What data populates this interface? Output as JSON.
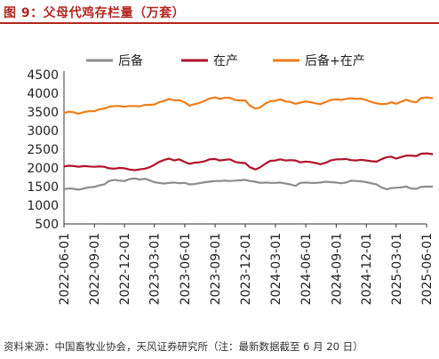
{
  "header": {
    "title": "图 9：父母代鸡存栏量（万套）"
  },
  "footer": {
    "source": "资料来源：中国畜牧业协会，天风证券研究所（注：最新数据截至 6 月 20 日）"
  },
  "chart_data": {
    "type": "line",
    "title": "图 9：父母代鸡存栏量（万套）",
    "xlabel": "",
    "ylabel": "",
    "ylim": [
      500,
      4500
    ],
    "yticks": [
      500,
      1000,
      1500,
      2000,
      2500,
      3000,
      3500,
      4000,
      4500
    ],
    "xticks": [
      "2022-06-01",
      "2022-09-01",
      "2022-12-01",
      "2023-03-01",
      "2023-06-01",
      "2023-09-01",
      "2023-12-01",
      "2024-03-01",
      "2024-06-01",
      "2024-09-01",
      "2024-12-01",
      "2025-03-01",
      "2025-06-01"
    ],
    "grid": false,
    "legend_position": "top",
    "series": [
      {
        "name": "后备",
        "color": "#8c8c8c",
        "points": [
          [
            "2022-06-01",
            1430
          ],
          [
            "2022-06-15",
            1450
          ],
          [
            "2022-07-01",
            1440
          ],
          [
            "2022-07-15",
            1420
          ],
          [
            "2022-08-01",
            1450
          ],
          [
            "2022-08-15",
            1480
          ],
          [
            "2022-09-01",
            1490
          ],
          [
            "2022-09-15",
            1530
          ],
          [
            "2022-10-01",
            1560
          ],
          [
            "2022-10-15",
            1650
          ],
          [
            "2022-11-01",
            1680
          ],
          [
            "2022-11-15",
            1660
          ],
          [
            "2022-12-01",
            1650
          ],
          [
            "2022-12-15",
            1700
          ],
          [
            "2023-01-01",
            1720
          ],
          [
            "2023-01-15",
            1690
          ],
          [
            "2023-02-01",
            1710
          ],
          [
            "2023-02-15",
            1670
          ],
          [
            "2023-03-01",
            1620
          ],
          [
            "2023-03-15",
            1600
          ],
          [
            "2023-04-01",
            1580
          ],
          [
            "2023-04-15",
            1600
          ],
          [
            "2023-05-01",
            1610
          ],
          [
            "2023-05-15",
            1590
          ],
          [
            "2023-06-01",
            1600
          ],
          [
            "2023-06-15",
            1560
          ],
          [
            "2023-07-01",
            1570
          ],
          [
            "2023-07-15",
            1590
          ],
          [
            "2023-08-01",
            1620
          ],
          [
            "2023-08-15",
            1630
          ],
          [
            "2023-09-01",
            1650
          ],
          [
            "2023-09-15",
            1650
          ],
          [
            "2023-10-01",
            1660
          ],
          [
            "2023-10-15",
            1650
          ],
          [
            "2023-11-01",
            1660
          ],
          [
            "2023-11-15",
            1670
          ],
          [
            "2023-12-01",
            1680
          ],
          [
            "2023-12-15",
            1650
          ],
          [
            "2024-01-01",
            1630
          ],
          [
            "2024-01-15",
            1600
          ],
          [
            "2024-02-01",
            1610
          ],
          [
            "2024-02-15",
            1600
          ],
          [
            "2024-03-01",
            1600
          ],
          [
            "2024-03-15",
            1610
          ],
          [
            "2024-04-01",
            1580
          ],
          [
            "2024-04-15",
            1560
          ],
          [
            "2024-05-01",
            1520
          ],
          [
            "2024-05-15",
            1600
          ],
          [
            "2024-06-01",
            1610
          ],
          [
            "2024-06-15",
            1600
          ],
          [
            "2024-07-01",
            1600
          ],
          [
            "2024-07-15",
            1610
          ],
          [
            "2024-08-01",
            1630
          ],
          [
            "2024-08-15",
            1620
          ],
          [
            "2024-09-01",
            1610
          ],
          [
            "2024-09-15",
            1590
          ],
          [
            "2024-10-01",
            1610
          ],
          [
            "2024-10-15",
            1660
          ],
          [
            "2024-11-01",
            1650
          ],
          [
            "2024-11-15",
            1640
          ],
          [
            "2024-12-01",
            1620
          ],
          [
            "2024-12-15",
            1590
          ],
          [
            "2025-01-01",
            1560
          ],
          [
            "2025-01-15",
            1480
          ],
          [
            "2025-02-01",
            1430
          ],
          [
            "2025-02-15",
            1460
          ],
          [
            "2025-03-01",
            1470
          ],
          [
            "2025-03-15",
            1480
          ],
          [
            "2025-04-01",
            1500
          ],
          [
            "2025-04-15",
            1450
          ],
          [
            "2025-05-01",
            1440
          ],
          [
            "2025-05-15",
            1490
          ],
          [
            "2025-06-01",
            1500
          ],
          [
            "2025-06-20",
            1500
          ]
        ]
      },
      {
        "name": "在产",
        "color": "#b0122b",
        "points": [
          [
            "2022-06-01",
            2040
          ],
          [
            "2022-06-15",
            2060
          ],
          [
            "2022-07-01",
            2050
          ],
          [
            "2022-07-15",
            2030
          ],
          [
            "2022-08-01",
            2050
          ],
          [
            "2022-08-15",
            2040
          ],
          [
            "2022-09-01",
            2030
          ],
          [
            "2022-09-15",
            2040
          ],
          [
            "2022-10-01",
            2030
          ],
          [
            "2022-10-15",
            1990
          ],
          [
            "2022-11-01",
            1980
          ],
          [
            "2022-11-15",
            2000
          ],
          [
            "2022-12-01",
            1990
          ],
          [
            "2022-12-15",
            1960
          ],
          [
            "2023-01-01",
            1940
          ],
          [
            "2023-01-15",
            1960
          ],
          [
            "2023-02-01",
            1980
          ],
          [
            "2023-02-15",
            2020
          ],
          [
            "2023-03-01",
            2080
          ],
          [
            "2023-03-15",
            2160
          ],
          [
            "2023-04-01",
            2220
          ],
          [
            "2023-04-15",
            2250
          ],
          [
            "2023-05-01",
            2200
          ],
          [
            "2023-05-15",
            2230
          ],
          [
            "2023-06-01",
            2160
          ],
          [
            "2023-06-15",
            2110
          ],
          [
            "2023-07-01",
            2140
          ],
          [
            "2023-07-15",
            2150
          ],
          [
            "2023-08-01",
            2180
          ],
          [
            "2023-08-15",
            2230
          ],
          [
            "2023-09-01",
            2240
          ],
          [
            "2023-09-15",
            2200
          ],
          [
            "2023-10-01",
            2220
          ],
          [
            "2023-10-15",
            2230
          ],
          [
            "2023-11-01",
            2160
          ],
          [
            "2023-11-15",
            2140
          ],
          [
            "2023-12-01",
            2130
          ],
          [
            "2023-12-15",
            2020
          ],
          [
            "2024-01-01",
            1960
          ],
          [
            "2024-01-15",
            2020
          ],
          [
            "2024-02-01",
            2120
          ],
          [
            "2024-02-15",
            2190
          ],
          [
            "2024-03-01",
            2200
          ],
          [
            "2024-03-15",
            2230
          ],
          [
            "2024-04-01",
            2200
          ],
          [
            "2024-04-15",
            2210
          ],
          [
            "2024-05-01",
            2200
          ],
          [
            "2024-05-15",
            2150
          ],
          [
            "2024-06-01",
            2170
          ],
          [
            "2024-06-15",
            2160
          ],
          [
            "2024-07-01",
            2130
          ],
          [
            "2024-07-15",
            2100
          ],
          [
            "2024-08-01",
            2140
          ],
          [
            "2024-08-15",
            2200
          ],
          [
            "2024-09-01",
            2230
          ],
          [
            "2024-09-15",
            2230
          ],
          [
            "2024-10-01",
            2240
          ],
          [
            "2024-10-15",
            2210
          ],
          [
            "2024-11-01",
            2200
          ],
          [
            "2024-11-15",
            2220
          ],
          [
            "2024-12-01",
            2200
          ],
          [
            "2024-12-15",
            2180
          ],
          [
            "2025-01-01",
            2170
          ],
          [
            "2025-01-15",
            2230
          ],
          [
            "2025-02-01",
            2290
          ],
          [
            "2025-02-15",
            2300
          ],
          [
            "2025-03-01",
            2250
          ],
          [
            "2025-03-15",
            2290
          ],
          [
            "2025-04-01",
            2330
          ],
          [
            "2025-04-15",
            2330
          ],
          [
            "2025-05-01",
            2320
          ],
          [
            "2025-05-15",
            2380
          ],
          [
            "2025-06-01",
            2390
          ],
          [
            "2025-06-20",
            2370
          ]
        ]
      },
      {
        "name": "后备+在产",
        "color": "#ee7e1a",
        "points": [
          [
            "2022-06-01",
            3470
          ],
          [
            "2022-06-15",
            3510
          ],
          [
            "2022-07-01",
            3490
          ],
          [
            "2022-07-15",
            3450
          ],
          [
            "2022-08-01",
            3500
          ],
          [
            "2022-08-15",
            3520
          ],
          [
            "2022-09-01",
            3520
          ],
          [
            "2022-09-15",
            3570
          ],
          [
            "2022-10-01",
            3590
          ],
          [
            "2022-10-15",
            3640
          ],
          [
            "2022-11-01",
            3660
          ],
          [
            "2022-11-15",
            3660
          ],
          [
            "2022-12-01",
            3640
          ],
          [
            "2022-12-15",
            3660
          ],
          [
            "2023-01-01",
            3660
          ],
          [
            "2023-01-15",
            3650
          ],
          [
            "2023-02-01",
            3690
          ],
          [
            "2023-02-15",
            3690
          ],
          [
            "2023-03-01",
            3700
          ],
          [
            "2023-03-15",
            3760
          ],
          [
            "2023-04-01",
            3800
          ],
          [
            "2023-04-15",
            3850
          ],
          [
            "2023-05-01",
            3810
          ],
          [
            "2023-05-15",
            3820
          ],
          [
            "2023-06-01",
            3760
          ],
          [
            "2023-06-15",
            3670
          ],
          [
            "2023-07-01",
            3710
          ],
          [
            "2023-07-15",
            3740
          ],
          [
            "2023-08-01",
            3800
          ],
          [
            "2023-08-15",
            3860
          ],
          [
            "2023-09-01",
            3890
          ],
          [
            "2023-09-15",
            3850
          ],
          [
            "2023-10-01",
            3880
          ],
          [
            "2023-10-15",
            3880
          ],
          [
            "2023-11-01",
            3820
          ],
          [
            "2023-11-15",
            3810
          ],
          [
            "2023-12-01",
            3810
          ],
          [
            "2023-12-15",
            3670
          ],
          [
            "2024-01-01",
            3590
          ],
          [
            "2024-01-15",
            3620
          ],
          [
            "2024-02-01",
            3730
          ],
          [
            "2024-02-15",
            3790
          ],
          [
            "2024-03-01",
            3800
          ],
          [
            "2024-03-15",
            3840
          ],
          [
            "2024-04-01",
            3780
          ],
          [
            "2024-04-15",
            3770
          ],
          [
            "2024-05-01",
            3720
          ],
          [
            "2024-05-15",
            3750
          ],
          [
            "2024-06-01",
            3780
          ],
          [
            "2024-06-15",
            3760
          ],
          [
            "2024-07-01",
            3730
          ],
          [
            "2024-07-15",
            3710
          ],
          [
            "2024-08-01",
            3770
          ],
          [
            "2024-08-15",
            3820
          ],
          [
            "2024-09-01",
            3840
          ],
          [
            "2024-09-15",
            3820
          ],
          [
            "2024-10-01",
            3850
          ],
          [
            "2024-10-15",
            3870
          ],
          [
            "2024-11-01",
            3850
          ],
          [
            "2024-11-15",
            3860
          ],
          [
            "2024-12-01",
            3820
          ],
          [
            "2024-12-15",
            3770
          ],
          [
            "2025-01-01",
            3730
          ],
          [
            "2025-01-15",
            3710
          ],
          [
            "2025-02-01",
            3720
          ],
          [
            "2025-02-15",
            3760
          ],
          [
            "2025-03-01",
            3720
          ],
          [
            "2025-03-15",
            3770
          ],
          [
            "2025-04-01",
            3830
          ],
          [
            "2025-04-15",
            3780
          ],
          [
            "2025-05-01",
            3760
          ],
          [
            "2025-05-15",
            3870
          ],
          [
            "2025-06-01",
            3890
          ],
          [
            "2025-06-20",
            3870
          ]
        ]
      }
    ]
  }
}
